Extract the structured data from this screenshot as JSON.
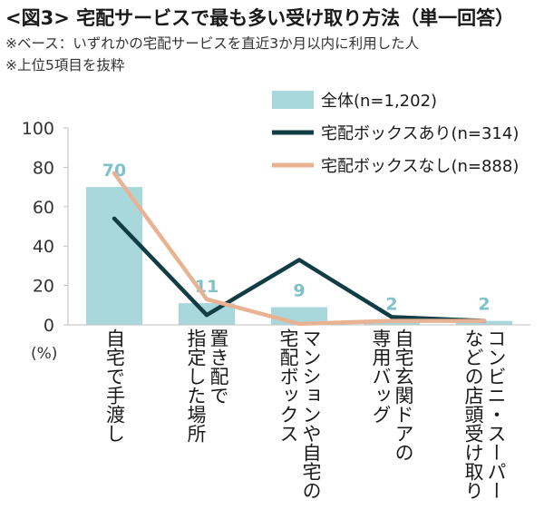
{
  "header": {
    "title": "<図3> 宅配サービスで最も多い受け取り方法（単一回答）",
    "note1": "※ベース：いずれかの宅配サービスを直近3か月以内に利用した人",
    "note2": "※上位5項目を抜粋"
  },
  "chart_data": {
    "type": "bar",
    "ylabel": "(%)",
    "ylim": [
      0,
      100
    ],
    "yticks": [
      0,
      20,
      40,
      60,
      80,
      100
    ],
    "grid": false,
    "legend_position": "top-right",
    "categories": [
      [
        "自宅で手渡し"
      ],
      [
        "置き配で",
        "指定した場所"
      ],
      [
        "マンションや自宅の",
        "宅配ボックス"
      ],
      [
        "自宅玄関ドアの",
        "専用バッグ"
      ],
      [
        "コンビニ・スーパー",
        "などの店頭受け取り"
      ]
    ],
    "series": [
      {
        "name": "全体(n=1,202)",
        "type": "bar",
        "color": "#a9d8dc",
        "values": [
          70,
          11,
          9,
          2,
          2
        ],
        "labels": [
          "70",
          "11",
          "9",
          "2",
          "2"
        ],
        "label_color": "#7fc2c9"
      },
      {
        "name": "宅配ボックスあり(n=314)",
        "type": "line",
        "color": "#123d44",
        "values": [
          54,
          5,
          33,
          4,
          2
        ]
      },
      {
        "name": "宅配ボックスなし(n=888)",
        "type": "line",
        "color": "#e8b392",
        "values": [
          77,
          13,
          0.5,
          2,
          2
        ]
      }
    ]
  }
}
